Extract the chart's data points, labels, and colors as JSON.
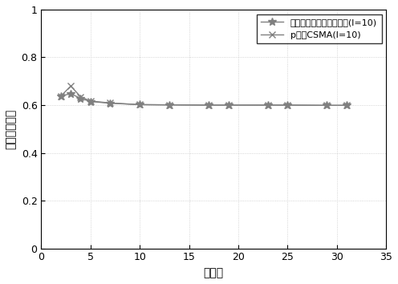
{
  "x_values": [
    2,
    3,
    4,
    5,
    7,
    10,
    13,
    17,
    19,
    23,
    25,
    29,
    31
  ],
  "y1_values": [
    0.638,
    0.648,
    0.628,
    0.615,
    0.608,
    0.602,
    0.601,
    0.6,
    0.6,
    0.6,
    0.6,
    0.599,
    0.599
  ],
  "y2_values": [
    0.638,
    0.68,
    0.635,
    0.617,
    0.609,
    0.602,
    0.601,
    0.6,
    0.6,
    0.6,
    0.6,
    0.599,
    0.599
  ],
  "line1_color": "#808080",
  "line2_color": "#808080",
  "label1": "基于载波侦听的协议序列(l=10)",
  "label2": "p坚持CSMA(l=10)",
  "xlabel": "用户数",
  "ylabel": "归一化吹吐率",
  "xlim": [
    0,
    35
  ],
  "ylim": [
    0,
    1
  ],
  "xticks": [
    0,
    5,
    10,
    15,
    20,
    25,
    30,
    35
  ],
  "yticks": [
    0,
    0.2,
    0.4,
    0.6,
    0.8,
    1.0
  ],
  "grid_color": "#c8c8c8",
  "bg_color": "#ffffff",
  "legend_loc": "upper right"
}
